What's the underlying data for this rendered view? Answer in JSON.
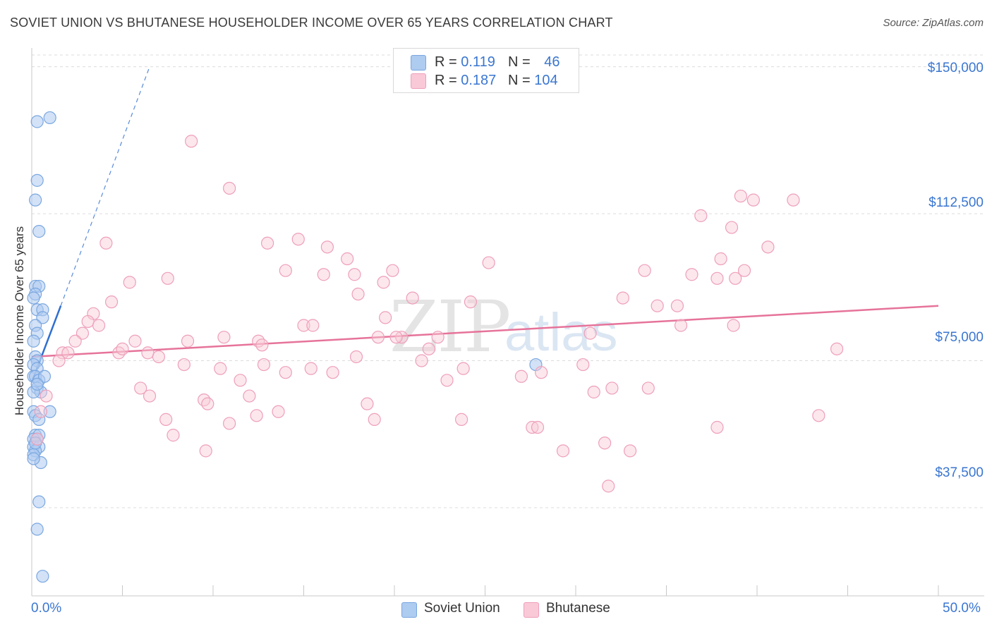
{
  "title": "SOVIET UNION VS BHUTANESE HOUSEHOLDER INCOME OVER 65 YEARS CORRELATION CHART",
  "source": "Source: ZipAtlas.com",
  "watermark": {
    "zip": "ZIP",
    "atlas": "atlas"
  },
  "legend": {
    "rows": [
      {
        "r_label": "R =",
        "r_value": "0.119",
        "n_label": "N =",
        "n_value": "46",
        "color": "#aecbf0",
        "border": "#7aa7e0"
      },
      {
        "r_label": "R =",
        "r_value": "0.187",
        "n_label": "N =",
        "n_value": "104",
        "color": "#f9c9d8",
        "border": "#ee9fb9"
      }
    ]
  },
  "bottom_legend": [
    {
      "label": "Soviet Union",
      "color": "#aecbf0",
      "border": "#7aa7e0"
    },
    {
      "label": "Bhutanese",
      "color": "#f9c9d8",
      "border": "#ee9fb9"
    }
  ],
  "chart_data": {
    "type": "scatter",
    "title": "SOVIET UNION VS BHUTANESE HOUSEHOLDER INCOME OVER 65 YEARS CORRELATION CHART",
    "xlabel": "",
    "ylabel": "Householder Income Over 65 years",
    "xlim": [
      0,
      50
    ],
    "ylim": [
      15000,
      153000
    ],
    "x_tick_labels": [
      "0.0%",
      "50.0%"
    ],
    "y_ticks": [
      37500,
      75000,
      112500,
      150000
    ],
    "y_tick_labels": [
      "$37,500",
      "$75,000",
      "$112,500",
      "$150,000"
    ],
    "grid": true,
    "series": [
      {
        "name": "Soviet Union",
        "color": "#7aa7e0",
        "fill": "rgba(174,203,240,0.55)",
        "trend_color": "#2f6fd0",
        "trend": {
          "x": [
            0.0,
            1.6
          ],
          "y": [
            69500,
            89000
          ]
        },
        "trend_ext": {
          "x": [
            1.6,
            6.5
          ],
          "y": [
            89000,
            150000
          ]
        },
        "points": [
          [
            1.0,
            137000
          ],
          [
            0.3,
            136000
          ],
          [
            0.3,
            121000
          ],
          [
            0.2,
            116000
          ],
          [
            0.4,
            108000
          ],
          [
            0.2,
            94000
          ],
          [
            0.4,
            94000
          ],
          [
            0.2,
            92000
          ],
          [
            0.1,
            91000
          ],
          [
            0.3,
            88000
          ],
          [
            0.6,
            88000
          ],
          [
            0.6,
            86000
          ],
          [
            0.2,
            84000
          ],
          [
            0.3,
            82000
          ],
          [
            0.1,
            80000
          ],
          [
            0.2,
            76000
          ],
          [
            0.3,
            75000
          ],
          [
            0.1,
            74000
          ],
          [
            0.3,
            73000
          ],
          [
            0.1,
            71000
          ],
          [
            0.2,
            71000
          ],
          [
            0.4,
            70000
          ],
          [
            0.7,
            71000
          ],
          [
            0.3,
            68000
          ],
          [
            0.5,
            67000
          ],
          [
            0.1,
            67000
          ],
          [
            1.0,
            62000
          ],
          [
            0.1,
            62000
          ],
          [
            0.2,
            61000
          ],
          [
            0.4,
            60000
          ],
          [
            0.2,
            56000
          ],
          [
            0.4,
            56000
          ],
          [
            0.1,
            55000
          ],
          [
            0.3,
            55000
          ],
          [
            0.1,
            53000
          ],
          [
            0.4,
            53000
          ],
          [
            0.2,
            52000
          ],
          [
            0.1,
            51000
          ],
          [
            0.5,
            49000
          ],
          [
            0.1,
            50000
          ],
          [
            0.4,
            39000
          ],
          [
            0.3,
            32000
          ],
          [
            0.6,
            20000
          ],
          [
            0.2,
            54000
          ],
          [
            0.3,
            69000
          ],
          [
            27.8,
            74000
          ]
        ]
      },
      {
        "name": "Bhutanese",
        "color": "#ee9fb9",
        "fill": "rgba(249,201,216,0.45)",
        "trend_color": "#e6739a",
        "trend": {
          "x": [
            0.0,
            50.0
          ],
          "y": [
            76000,
            89000
          ]
        },
        "points": [
          [
            8.8,
            131000
          ],
          [
            10.9,
            119000
          ],
          [
            4.1,
            105000
          ],
          [
            13.0,
            105000
          ],
          [
            14.7,
            106000
          ],
          [
            16.3,
            104000
          ],
          [
            17.4,
            101000
          ],
          [
            14.0,
            98000
          ],
          [
            16.1,
            97000
          ],
          [
            17.8,
            97000
          ],
          [
            19.9,
            98000
          ],
          [
            19.4,
            95000
          ],
          [
            7.5,
            96000
          ],
          [
            5.4,
            95000
          ],
          [
            18.0,
            92000
          ],
          [
            21.0,
            91000
          ],
          [
            25.2,
            100000
          ],
          [
            24.2,
            90000
          ],
          [
            32.6,
            91000
          ],
          [
            33.8,
            98000
          ],
          [
            36.4,
            97000
          ],
          [
            37.8,
            96000
          ],
          [
            38.8,
            96000
          ],
          [
            38.0,
            101000
          ],
          [
            39.3,
            98000
          ],
          [
            40.6,
            104000
          ],
          [
            36.9,
            112000
          ],
          [
            38.6,
            109000
          ],
          [
            39.1,
            117000
          ],
          [
            39.8,
            116000
          ],
          [
            42.0,
            116000
          ],
          [
            35.6,
            89000
          ],
          [
            34.5,
            89000
          ],
          [
            4.4,
            90000
          ],
          [
            3.4,
            87000
          ],
          [
            3.1,
            85000
          ],
          [
            3.7,
            84000
          ],
          [
            2.8,
            82000
          ],
          [
            2.4,
            80000
          ],
          [
            1.7,
            77000
          ],
          [
            2.0,
            77000
          ],
          [
            1.5,
            75000
          ],
          [
            4.8,
            77000
          ],
          [
            5.0,
            78000
          ],
          [
            5.7,
            80000
          ],
          [
            6.4,
            77000
          ],
          [
            7.0,
            76000
          ],
          [
            8.6,
            80000
          ],
          [
            10.6,
            81000
          ],
          [
            12.5,
            80000
          ],
          [
            12.7,
            79000
          ],
          [
            15.0,
            84000
          ],
          [
            15.5,
            84000
          ],
          [
            19.5,
            86000
          ],
          [
            19.1,
            81000
          ],
          [
            20.4,
            81000
          ],
          [
            20.1,
            81000
          ],
          [
            22.4,
            81000
          ],
          [
            21.9,
            78000
          ],
          [
            21.5,
            75000
          ],
          [
            17.9,
            76000
          ],
          [
            16.6,
            72000
          ],
          [
            15.4,
            73000
          ],
          [
            14.0,
            72000
          ],
          [
            12.8,
            74000
          ],
          [
            10.4,
            73000
          ],
          [
            11.5,
            70000
          ],
          [
            8.4,
            74000
          ],
          [
            23.8,
            73000
          ],
          [
            22.9,
            70000
          ],
          [
            27.0,
            71000
          ],
          [
            28.1,
            72000
          ],
          [
            30.4,
            74000
          ],
          [
            31.0,
            67000
          ],
          [
            32.0,
            68000
          ],
          [
            34.0,
            68000
          ],
          [
            35.8,
            84000
          ],
          [
            38.7,
            84000
          ],
          [
            30.8,
            82000
          ],
          [
            44.4,
            78000
          ],
          [
            6.0,
            68000
          ],
          [
            6.5,
            66000
          ],
          [
            9.5,
            65000
          ],
          [
            9.7,
            64000
          ],
          [
            12.0,
            66000
          ],
          [
            13.6,
            62000
          ],
          [
            12.4,
            61000
          ],
          [
            10.9,
            59000
          ],
          [
            7.4,
            60000
          ],
          [
            7.8,
            56000
          ],
          [
            9.6,
            52000
          ],
          [
            18.5,
            64000
          ],
          [
            18.9,
            60000
          ],
          [
            23.7,
            60000
          ],
          [
            27.6,
            58000
          ],
          [
            27.9,
            58000
          ],
          [
            29.3,
            52000
          ],
          [
            31.6,
            54000
          ],
          [
            33.0,
            52000
          ],
          [
            31.8,
            43000
          ],
          [
            37.8,
            58000
          ],
          [
            43.4,
            61000
          ],
          [
            0.8,
            66000
          ],
          [
            0.5,
            62000
          ],
          [
            0.3,
            55000
          ]
        ]
      }
    ]
  }
}
